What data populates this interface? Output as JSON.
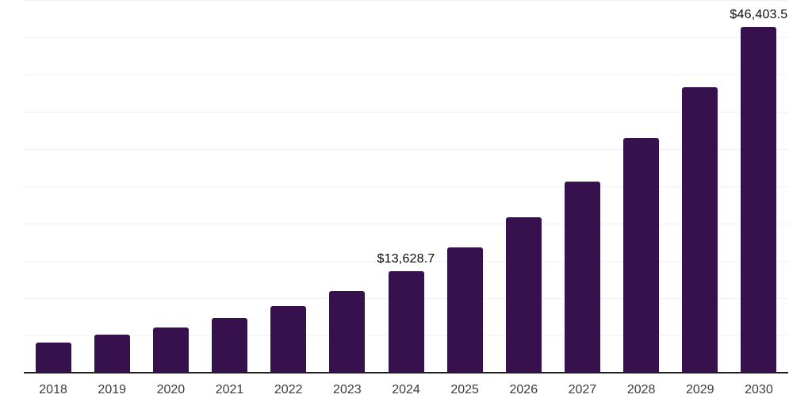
{
  "chart_data": {
    "type": "bar",
    "title": "",
    "xlabel": "",
    "ylabel": "",
    "categories": [
      "2018",
      "2019",
      "2020",
      "2021",
      "2022",
      "2023",
      "2024",
      "2025",
      "2026",
      "2027",
      "2028",
      "2029",
      "2030"
    ],
    "values": [
      4080,
      5080,
      6070,
      7340,
      8970,
      10930,
      13628.7,
      16830,
      20850,
      25610,
      31500,
      38300,
      46403.5
    ],
    "labeled_points": [
      {
        "category": "2024",
        "label": "$13,628.7"
      },
      {
        "category": "2030",
        "label": "$46,403.5"
      }
    ],
    "ylim": [
      0,
      50000
    ],
    "gridline_interval": 5000,
    "grid": true,
    "legend": false,
    "colors": {
      "bar": "#36114e",
      "gridline": "#f1f1f1",
      "axis_line": "#1f1f1f",
      "tick_label": "#3a3a3a",
      "data_label": "#0a0a0a",
      "background": "#ffffff"
    }
  }
}
